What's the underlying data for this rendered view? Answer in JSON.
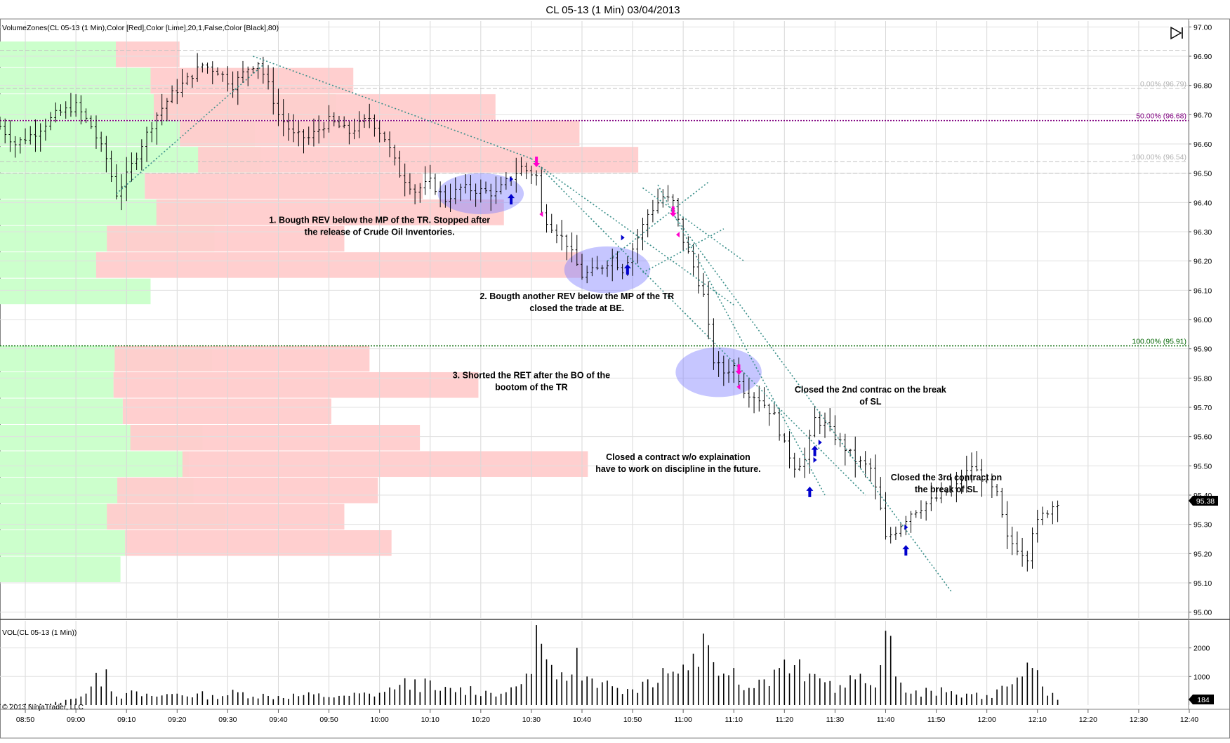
{
  "window_title": "CL 05-13 (1 Min)  03/04/2013",
  "price_panel_label": "VolumeZones(CL 05-13 (1 Min),Color [Red],Color [Lime],20,1,False,Color [Black],80)",
  "volume_panel_label": "VOL(CL 05-13 (1 Min))",
  "copyright": "© 2013 NinjaTrader, LLC",
  "last_price_badge": "95.38",
  "last_volume_badge": "184",
  "icons": {
    "playback": "skip-end-icon"
  },
  "colors": {
    "sell_zone": "#ffcccc",
    "buy_zone": "#ccffcc",
    "trendline": "#3a8f8a",
    "fib_50": "#800080",
    "fib_100": "#006400",
    "entry_arrow": "#0000cc",
    "exit_arrow": "#ff00cc",
    "highlight": "#8080ff"
  },
  "chart_data": {
    "type": "ohlc",
    "title": "CL 05-13 (1 Min)  03/04/2013",
    "x_time_range": [
      "08:45",
      "12:40"
    ],
    "x_ticks": [
      "08:50",
      "09:00",
      "09:10",
      "09:20",
      "09:30",
      "09:40",
      "09:50",
      "10:00",
      "10:10",
      "10:20",
      "10:30",
      "10:40",
      "10:50",
      "11:00",
      "11:10",
      "11:20",
      "11:30",
      "11:40",
      "11:50",
      "12:00",
      "12:10",
      "12:20",
      "12:30",
      "12:40"
    ],
    "y_price_range": [
      94.98,
      97.02
    ],
    "y_price_ticks": [
      "97.00",
      "96.90",
      "96.80",
      "96.70",
      "96.60",
      "96.50",
      "96.40",
      "96.30",
      "96.20",
      "96.10",
      "96.00",
      "95.90",
      "95.80",
      "95.70",
      "95.60",
      "95.50",
      "95.40",
      "95.30",
      "95.20",
      "95.10",
      "95.00"
    ],
    "y_volume_ticks": [
      "2000",
      "1000"
    ],
    "y_volume_range": [
      0,
      2900
    ],
    "price_anchors": [
      [
        "08:45",
        96.66
      ],
      [
        "08:48",
        96.6
      ],
      [
        "08:52",
        96.64
      ],
      [
        "08:56",
        96.7
      ],
      [
        "09:00",
        96.73
      ],
      [
        "09:03",
        96.66
      ],
      [
        "09:06",
        96.55
      ],
      [
        "09:08",
        96.43
      ],
      [
        "09:10",
        96.49
      ],
      [
        "09:13",
        96.6
      ],
      [
        "09:16",
        96.7
      ],
      [
        "09:19",
        96.77
      ],
      [
        "09:22",
        96.82
      ],
      [
        "09:25",
        96.87
      ],
      [
        "09:28",
        96.85
      ],
      [
        "09:31",
        96.8
      ],
      [
        "09:34",
        96.86
      ],
      [
        "09:36",
        96.88
      ],
      [
        "09:38",
        96.8
      ],
      [
        "09:40",
        96.7
      ],
      [
        "09:43",
        96.63
      ],
      [
        "09:46",
        96.62
      ],
      [
        "09:50",
        96.68
      ],
      [
        "09:54",
        96.64
      ],
      [
        "09:58",
        96.69
      ],
      [
        "10:01",
        96.62
      ],
      [
        "10:04",
        96.5
      ],
      [
        "10:07",
        96.44
      ],
      [
        "10:10",
        96.47
      ],
      [
        "10:13",
        96.41
      ],
      [
        "10:16",
        96.45
      ],
      [
        "10:20",
        96.44
      ],
      [
        "10:23",
        96.43
      ],
      [
        "10:25",
        96.47
      ],
      [
        "10:28",
        96.52
      ],
      [
        "10:31",
        96.49
      ],
      [
        "10:32",
        96.36
      ],
      [
        "10:34",
        96.32
      ],
      [
        "10:37",
        96.26
      ],
      [
        "10:40",
        96.15
      ],
      [
        "10:43",
        96.17
      ],
      [
        "10:46",
        96.21
      ],
      [
        "10:48",
        96.17
      ],
      [
        "10:51",
        96.28
      ],
      [
        "10:53",
        96.36
      ],
      [
        "10:56",
        96.42
      ],
      [
        "10:58",
        96.4
      ],
      [
        "11:00",
        96.27
      ],
      [
        "11:02",
        96.18
      ],
      [
        "11:04",
        96.08
      ],
      [
        "11:06",
        95.86
      ],
      [
        "11:08",
        95.82
      ],
      [
        "11:10",
        95.84
      ],
      [
        "11:12",
        95.76
      ],
      [
        "11:15",
        95.73
      ],
      [
        "11:18",
        95.67
      ],
      [
        "11:20",
        95.57
      ],
      [
        "11:22",
        95.5
      ],
      [
        "11:24",
        95.52
      ],
      [
        "11:26",
        95.66
      ],
      [
        "11:28",
        95.64
      ],
      [
        "11:31",
        95.58
      ],
      [
        "11:34",
        95.52
      ],
      [
        "11:37",
        95.49
      ],
      [
        "11:39",
        95.35
      ],
      [
        "11:40",
        95.25
      ],
      [
        "11:42",
        95.28
      ],
      [
        "11:45",
        95.34
      ],
      [
        "11:48",
        95.37
      ],
      [
        "11:51",
        95.4
      ],
      [
        "11:54",
        95.43
      ],
      [
        "11:57",
        95.5
      ],
      [
        "11:59",
        95.46
      ],
      [
        "12:02",
        95.4
      ],
      [
        "12:04",
        95.25
      ],
      [
        "12:06",
        95.22
      ],
      [
        "12:08",
        95.19
      ],
      [
        "12:09",
        95.28
      ],
      [
        "12:11",
        95.33
      ],
      [
        "12:14",
        95.38
      ]
    ],
    "volume_zones_upper": [
      {
        "price_low": 96.86,
        "price_high": 96.95,
        "buy": 1.0,
        "sell": 0.55
      },
      {
        "price_low": 96.77,
        "price_high": 96.86,
        "buy": 1.3,
        "sell": 1.75
      },
      {
        "price_low": 96.68,
        "price_high": 96.77,
        "buy": 2.9,
        "sell": 2.95
      },
      {
        "price_low": 96.59,
        "price_high": 96.68,
        "buy": 2.2,
        "sell": 3.45
      },
      {
        "price_low": 96.5,
        "price_high": 96.59,
        "buy": 2.25,
        "sell": 3.8
      },
      {
        "price_low": 96.41,
        "price_high": 96.5,
        "buy": 1.25,
        "sell": 2.4
      },
      {
        "price_low": 96.32,
        "price_high": 96.41,
        "buy": 1.95,
        "sell": 3.0
      },
      {
        "price_low": 96.23,
        "price_high": 96.32,
        "buy": 1.85,
        "sell": 2.05
      },
      {
        "price_low": 96.14,
        "price_high": 96.23,
        "buy": 0.83,
        "sell": 4.2
      },
      {
        "price_low": 96.05,
        "price_high": 96.14,
        "buy": 1.3,
        "sell": 0
      }
    ],
    "volume_zones_lower": [
      {
        "price_low": 95.82,
        "price_high": 95.91,
        "buy": 1.83,
        "sell": 2.2
      },
      {
        "price_low": 95.73,
        "price_high": 95.82,
        "buy": 0.98,
        "sell": 3.15
      },
      {
        "price_low": 95.64,
        "price_high": 95.73,
        "buy": 1.06,
        "sell": 1.8
      },
      {
        "price_low": 95.55,
        "price_high": 95.64,
        "buy": 1.75,
        "sell": 2.5
      },
      {
        "price_low": 95.46,
        "price_high": 95.55,
        "buy": 1.63,
        "sell": 3.5
      },
      {
        "price_low": 95.37,
        "price_high": 95.46,
        "buy": 1.67,
        "sell": 2.25
      },
      {
        "price_low": 95.28,
        "price_high": 95.37,
        "buy": 1.95,
        "sell": 2.05
      },
      {
        "price_low": 95.19,
        "price_high": 95.28,
        "buy": 1.08,
        "sell": 2.3
      },
      {
        "price_low": 95.1,
        "price_high": 95.19,
        "buy": 1.04,
        "sell": 0
      }
    ],
    "fib_levels": [
      {
        "label": "0.00% (96.79)",
        "price": 96.79,
        "style": "dashed-gray"
      },
      {
        "label": "50.00% (96.68)",
        "price": 96.68,
        "style": "dotted-purple"
      },
      {
        "label": "100.00% (96.54)",
        "price": 96.54,
        "style": "dashed-gray"
      },
      {
        "label": "100.00% (95.91)",
        "price": 95.91,
        "style": "dotted-green"
      }
    ],
    "reference_lines": [
      96.92,
      96.5
    ],
    "trendlines": [
      {
        "from": [
          "09:08",
          96.43
        ],
        "to": [
          "09:37",
          96.87
        ]
      },
      {
        "from": [
          "09:35",
          96.9
        ],
        "to": [
          "10:30",
          96.55
        ]
      },
      {
        "from": [
          "10:30",
          96.55
        ],
        "to": [
          "11:36",
          95.4
        ]
      },
      {
        "from": [
          "10:32",
          96.52
        ],
        "to": [
          "11:10",
          96.05
        ]
      },
      {
        "from": [
          "10:45",
          96.2
        ],
        "to": [
          "11:05",
          96.47
        ]
      },
      {
        "from": [
          "10:52",
          96.16
        ],
        "to": [
          "11:08",
          96.31
        ]
      },
      {
        "from": [
          "10:55",
          96.46
        ],
        "to": [
          "11:28",
          95.4
        ]
      },
      {
        "from": [
          "10:58",
          96.36
        ],
        "to": [
          "11:53",
          95.07
        ]
      },
      {
        "from": [
          "10:52",
          96.45
        ],
        "to": [
          "11:12",
          96.2
        ]
      }
    ],
    "markers": [
      {
        "time": "10:26",
        "price": 96.48,
        "kind": "buy-triangle"
      },
      {
        "time": "10:26",
        "price": 96.41,
        "kind": "buy-arrow"
      },
      {
        "time": "10:31",
        "price": 96.54,
        "kind": "sell-arrow"
      },
      {
        "time": "10:32",
        "price": 96.36,
        "kind": "exit-triangle"
      },
      {
        "time": "10:48",
        "price": 96.28,
        "kind": "buy-triangle"
      },
      {
        "time": "10:49",
        "price": 96.17,
        "kind": "buy-arrow"
      },
      {
        "time": "10:58",
        "price": 96.37,
        "kind": "sell-arrow"
      },
      {
        "time": "10:59",
        "price": 96.29,
        "kind": "exit-triangle"
      },
      {
        "time": "11:11",
        "price": 95.83,
        "kind": "sell-arrow"
      },
      {
        "time": "11:11",
        "price": 95.77,
        "kind": "exit-triangle"
      },
      {
        "time": "11:25",
        "price": 95.41,
        "kind": "buy-arrow"
      },
      {
        "time": "11:26",
        "price": 95.55,
        "kind": "buy-arrow"
      },
      {
        "time": "11:26",
        "price": 95.52,
        "kind": "buy-triangle"
      },
      {
        "time": "11:27",
        "price": 95.58,
        "kind": "buy-triangle"
      },
      {
        "time": "11:44",
        "price": 95.21,
        "kind": "buy-arrow"
      },
      {
        "time": "11:44",
        "price": 95.29,
        "kind": "buy-triangle"
      }
    ],
    "highlights": [
      {
        "time": "10:20",
        "price": 96.43,
        "time_span": 17,
        "price_span": 0.14
      },
      {
        "time": "10:45",
        "price": 96.17,
        "time_span": 17,
        "price_span": 0.16
      },
      {
        "time": "11:07",
        "price": 95.82,
        "time_span": 17,
        "price_span": 0.17
      }
    ],
    "annotations": [
      {
        "lines": [
          "1. Bougth REV below the MP of the TR. Stopped after",
          "the release of Crude Oil Inventories."
        ],
        "time": "10:00",
        "price": 96.33
      },
      {
        "lines": [
          "2. Bougth another REV below the MP of the TR",
          "closed the trade at BE."
        ],
        "time": "10:39",
        "price": 96.07
      },
      {
        "lines": [
          "3. Shorted the RET after the BO of the",
          "bootom of the TR"
        ],
        "time": "10:30",
        "price": 95.8
      },
      {
        "lines": [
          "Closed the 2nd contrac on the break",
          "of SL"
        ],
        "time": "11:37",
        "price": 95.75
      },
      {
        "lines": [
          "Closed a contract w/o explaination",
          "have to work on discipline in the future."
        ],
        "time": "10:59",
        "price": 95.52
      },
      {
        "lines": [
          "Closed the 3rd contract on",
          "the break of SL"
        ],
        "time": "11:52",
        "price": 95.45
      }
    ],
    "volume_anchors": [
      [
        "08:45",
        30
      ],
      [
        "08:55",
        50
      ],
      [
        "09:00",
        230
      ],
      [
        "09:03",
        650
      ],
      [
        "09:06",
        1250
      ],
      [
        "09:08",
        300
      ],
      [
        "09:10",
        420
      ],
      [
        "09:15",
        320
      ],
      [
        "09:20",
        400
      ],
      [
        "09:27",
        350
      ],
      [
        "09:33",
        450
      ],
      [
        "09:38",
        320
      ],
      [
        "09:45",
        350
      ],
      [
        "09:53",
        330
      ],
      [
        "09:58",
        400
      ],
      [
        "10:03",
        550
      ],
      [
        "10:07",
        900
      ],
      [
        "10:12",
        500
      ],
      [
        "10:16",
        620
      ],
      [
        "10:21",
        500
      ],
      [
        "10:25",
        450
      ],
      [
        "10:29",
        1100
      ],
      [
        "10:31",
        2800
      ],
      [
        "10:33",
        1600
      ],
      [
        "10:35",
        900
      ],
      [
        "10:37",
        850
      ],
      [
        "10:39",
        2000
      ],
      [
        "10:41",
        1000
      ],
      [
        "10:44",
        800
      ],
      [
        "10:47",
        600
      ],
      [
        "10:50",
        550
      ],
      [
        "10:53",
        900
      ],
      [
        "10:56",
        1300
      ],
      [
        "10:59",
        1100
      ],
      [
        "11:02",
        1800
      ],
      [
        "11:04",
        2500
      ],
      [
        "11:06",
        1500
      ],
      [
        "11:08",
        1100
      ],
      [
        "11:10",
        1300
      ],
      [
        "11:13",
        600
      ],
      [
        "11:16",
        900
      ],
      [
        "11:19",
        1300
      ],
      [
        "11:22",
        1400
      ],
      [
        "11:25",
        1100
      ],
      [
        "11:28",
        800
      ],
      [
        "11:31",
        700
      ],
      [
        "11:34",
        900
      ],
      [
        "11:37",
        700
      ],
      [
        "11:39",
        1400
      ],
      [
        "11:40",
        2600
      ],
      [
        "11:42",
        1000
      ],
      [
        "11:45",
        400
      ],
      [
        "11:49",
        500
      ],
      [
        "11:52",
        450
      ],
      [
        "11:56",
        400
      ],
      [
        "12:00",
        350
      ],
      [
        "12:04",
        650
      ],
      [
        "12:07",
        1000
      ],
      [
        "12:09",
        1300
      ],
      [
        "12:11",
        650
      ],
      [
        "12:14",
        184
      ]
    ]
  }
}
